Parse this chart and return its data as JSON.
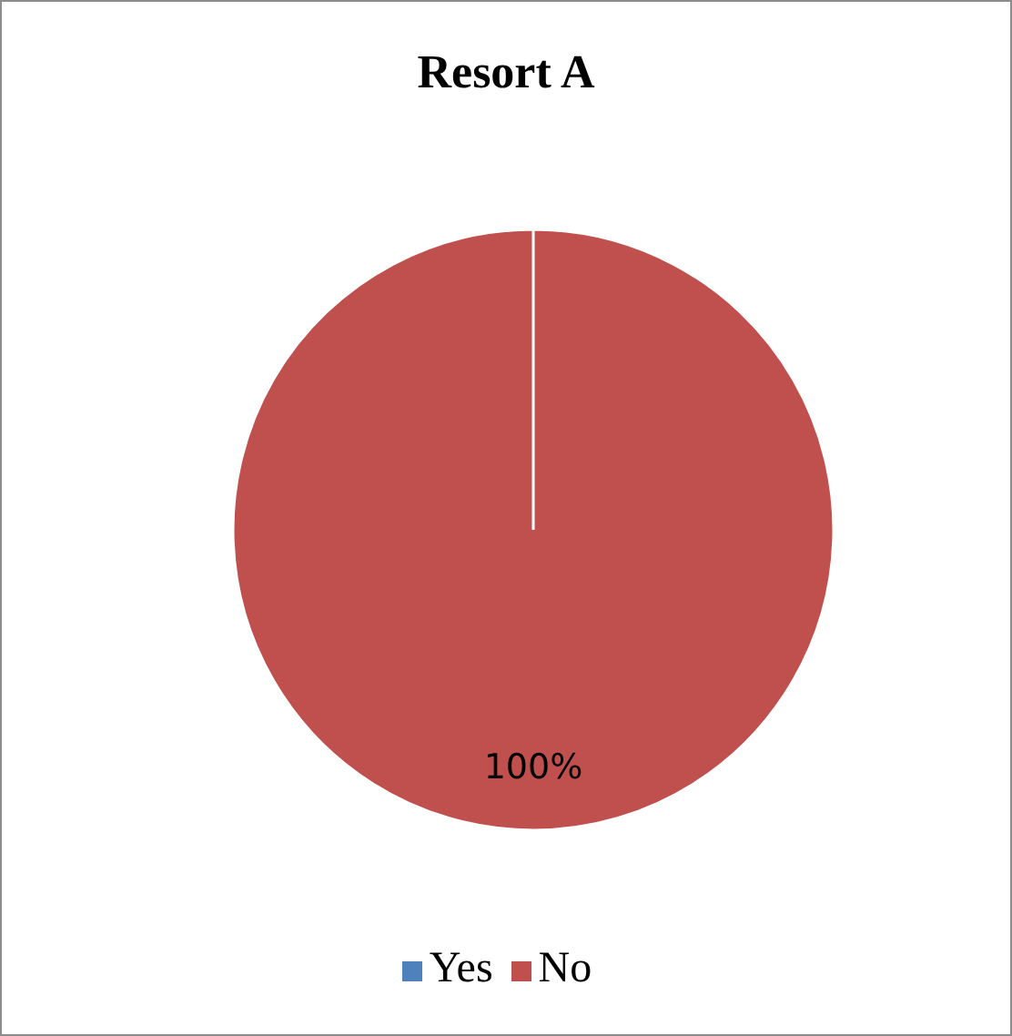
{
  "chart_data": {
    "type": "pie",
    "title": "Resort A",
    "categories": [
      "Yes",
      "No"
    ],
    "values": [
      0,
      100
    ],
    "colors": [
      "#4f81bd",
      "#c0504d"
    ],
    "value_labels": [
      null,
      "100%"
    ],
    "legend": "bottom"
  }
}
